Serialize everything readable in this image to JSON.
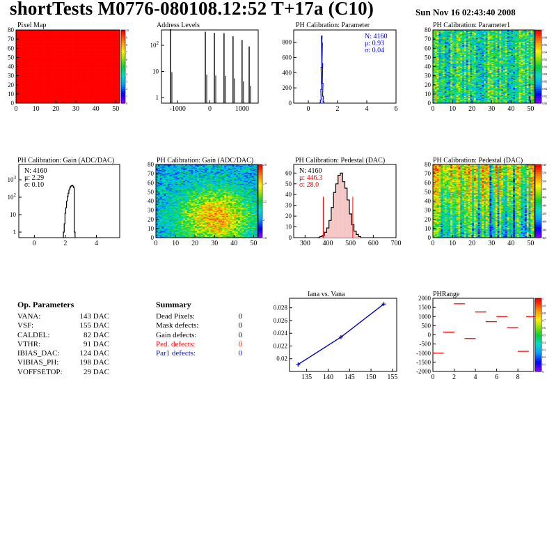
{
  "header": {
    "title": "shortTests M0776-080108.12:52 T+17a (C10)",
    "date": "Sun Nov 16 02:43:40 2008"
  },
  "op_parameters": {
    "title": "Op. Parameters",
    "rows": [
      {
        "name": "VANA:",
        "value": "143 DAC"
      },
      {
        "name": "VSF:",
        "value": "155 DAC"
      },
      {
        "name": "CALDEL:",
        "value": "82 DAC"
      },
      {
        "name": "VTHR:",
        "value": "91 DAC"
      },
      {
        "name": "IBIAS_DAC:",
        "value": "124 DAC"
      },
      {
        "name": "VIBIAS_PH:",
        "value": "198 DAC"
      },
      {
        "name": "VOFFSETOP:",
        "value": "29 DAC"
      }
    ]
  },
  "summary": {
    "title": "Summary",
    "rows": [
      {
        "name": "Dead Pixels:",
        "value": "0",
        "color": "#000000"
      },
      {
        "name": "Mask defects:",
        "value": "0",
        "color": "#000000"
      },
      {
        "name": "Gain defects:",
        "value": "0",
        "color": "#000000"
      },
      {
        "name": "Ped. defects:",
        "value": "0",
        "color": "#ff0000"
      },
      {
        "name": "Par1 defects:",
        "value": "0",
        "color": "#0000ff"
      }
    ]
  },
  "chart_data": [
    {
      "id": "pixel_map",
      "type": "heatmap",
      "title": "Pixel Map",
      "xlim": [
        0,
        52
      ],
      "ylim": [
        0,
        80
      ],
      "xticks": [
        "0",
        "10",
        "20",
        "30",
        "40",
        "50"
      ],
      "yticks": [
        "0",
        "10",
        "20",
        "30",
        "40",
        "50",
        "60",
        "70",
        "80"
      ],
      "fill": "uniform",
      "value": 10,
      "fill_color": "#ff0000",
      "zlim": [
        0,
        10
      ],
      "zticks": [
        "0",
        "1",
        "2",
        "3",
        "4",
        "5",
        "6",
        "7",
        "8",
        "9",
        "10"
      ]
    },
    {
      "id": "address_levels",
      "type": "bar",
      "title": "Address Levels",
      "log_y": true,
      "xlim": [
        -1500,
        1500
      ],
      "xticks": [
        "-1000",
        "0",
        "1000"
      ],
      "yticks": [
        "1",
        "10",
        "10^2"
      ],
      "peaks_x": [
        -1220,
        -140,
        140,
        440,
        720,
        1000,
        1220
      ],
      "peaks_height": [
        420,
        330,
        300,
        290,
        220,
        160,
        90
      ]
    },
    {
      "id": "ph_param",
      "type": "bar",
      "title": "PH Calibration: Parameter",
      "xlim": [
        -1,
        6
      ],
      "ylim": [
        0,
        960
      ],
      "xticks": [
        "0",
        "2",
        "4",
        "6"
      ],
      "yticks": [
        "0",
        "200",
        "400",
        "600",
        "800"
      ],
      "bins_x": [
        0.8,
        0.85,
        0.88,
        0.9,
        0.92,
        0.94,
        0.96,
        0.98,
        1.0,
        1.03,
        1.07
      ],
      "bins_y": [
        5,
        40,
        180,
        470,
        880,
        790,
        520,
        260,
        90,
        20,
        4
      ],
      "stats": {
        "n": "N: 4160",
        "mu": "μ: 0.93",
        "sigma": "σ: 0.04"
      },
      "stats_color": "#0000ff"
    },
    {
      "id": "ph_param1",
      "type": "heatmap",
      "title": "PH Calibration: Parameter1",
      "xlim": [
        0,
        52
      ],
      "ylim": [
        0,
        80
      ],
      "xticks": [
        "0",
        "10",
        "20",
        "30",
        "40",
        "50"
      ],
      "yticks": [
        "0",
        "10",
        "20",
        "30",
        "40",
        "50",
        "60",
        "70",
        "80"
      ],
      "fill": "noise",
      "mean": 0.5,
      "spread": 0.2,
      "zticks": [
        "0.80",
        "0.82",
        "0.84",
        "0.86",
        "0.88",
        "0.90",
        "0.92",
        "0.94",
        "0.96",
        "0.98",
        "1"
      ]
    },
    {
      "id": "ph_gain",
      "type": "bar",
      "title": "PH Calibration: Gain (ADC/DAC)",
      "log_y": true,
      "xlim": [
        -1,
        5.5
      ],
      "xticks": [
        "0",
        "2",
        "4"
      ],
      "yticks": [
        "1",
        "10",
        "10^2",
        "10^3"
      ],
      "bins_x": [
        1.9,
        1.95,
        2.0,
        2.05,
        2.1,
        2.15,
        2.2,
        2.25,
        2.3,
        2.35,
        2.4,
        2.45,
        2.5,
        2.55,
        2.6
      ],
      "bins_y": [
        1,
        3,
        12,
        25,
        60,
        110,
        170,
        260,
        340,
        420,
        460,
        480,
        430,
        350,
        1
      ],
      "stats": {
        "n": "N: 4160",
        "mu": "μ: 2.29",
        "sigma": "σ: 0.10"
      },
      "stats_color": "#000000"
    },
    {
      "id": "ph_gain_map",
      "type": "heatmap",
      "title": "PH Calibration: Gain (ADC/DAC)",
      "xlim": [
        0,
        52
      ],
      "ylim": [
        0,
        80
      ],
      "xticks": [
        "0",
        "10",
        "20",
        "30",
        "40",
        "50"
      ],
      "yticks": [
        "0",
        "10",
        "20",
        "30",
        "40",
        "50",
        "60",
        "70",
        "80"
      ],
      "fill": "gain",
      "mean": 0.55,
      "spread": 0.2,
      "zticks": [
        "1.8",
        "2",
        "2.2",
        "2.4",
        "2.6"
      ]
    },
    {
      "id": "ph_pedestal",
      "type": "bar",
      "title": "PH Calibration: Pedestal (DAC)",
      "xlim": [
        250,
        700
      ],
      "ylim": [
        0,
        68
      ],
      "xticks": [
        "300",
        "400",
        "500",
        "600",
        "700"
      ],
      "yticks": [
        "0",
        "10",
        "20",
        "30",
        "40",
        "50",
        "60"
      ],
      "bins_x": [
        360,
        370,
        380,
        390,
        400,
        410,
        420,
        430,
        440,
        450,
        460,
        470,
        480,
        490,
        500,
        510,
        520,
        530,
        540
      ],
      "bins_y": [
        0,
        1,
        2,
        5,
        9,
        16,
        28,
        42,
        50,
        58,
        60,
        52,
        46,
        35,
        22,
        12,
        6,
        3,
        1
      ],
      "marker_lines": [
        380,
        510
      ],
      "stats": {
        "n": "N: 4160",
        "mu": "μ: 446.3",
        "sigma": "σ: 28.0"
      },
      "stats_color": "#ff0000"
    },
    {
      "id": "ph_pedestal_map",
      "type": "heatmap",
      "title": "PH Calibration: Pedestal (DAC)",
      "xlim": [
        0,
        52
      ],
      "ylim": [
        0,
        80
      ],
      "xticks": [
        "0",
        "10",
        "20",
        "30",
        "40",
        "50"
      ],
      "yticks": [
        "0",
        "10",
        "20",
        "30",
        "40",
        "50",
        "60",
        "70",
        "80"
      ],
      "fill": "pedestal",
      "mean": 0.4,
      "spread": 0.2,
      "zticks": [
        "360",
        "380",
        "400",
        "420",
        "440",
        "460",
        "480",
        "500",
        "520",
        "540"
      ]
    },
    {
      "id": "iana_vana",
      "type": "line",
      "title": "Iana vs. Vana",
      "xlim": [
        131,
        156
      ],
      "ylim": [
        0.018,
        0.0295
      ],
      "xticks": [
        "135",
        "140",
        "145",
        "150",
        "155"
      ],
      "yticks": [
        "0.02",
        "0.022",
        "0.024",
        "0.026",
        "0.028"
      ],
      "x": [
        133,
        143,
        153
      ],
      "y": [
        0.0191,
        0.0234,
        0.0286
      ],
      "color": "#0000cc"
    },
    {
      "id": "phrange",
      "type": "scatter",
      "title": "PHRange",
      "xlim": [
        0,
        9.5
      ],
      "ylim": [
        -2000,
        2000
      ],
      "xticks": [
        "0",
        "2",
        "4",
        "6",
        "8"
      ],
      "yticks": [
        "-2000",
        "-1500",
        "-1000",
        "-500",
        "0",
        "500",
        "1000",
        "1500",
        "2000"
      ],
      "x": [
        0.5,
        1.5,
        2.5,
        3.5,
        4.5,
        5.5,
        6.5,
        7.5,
        8.5
      ],
      "y": [
        -1000,
        150,
        1700,
        -200,
        1250,
        720,
        1000,
        400,
        -900
      ],
      "extra_x": [
        9.3
      ],
      "extra_y": [
        1000
      ],
      "color": "#ff0000",
      "zticks": [
        "0",
        "0.1",
        "0.2",
        "0.3",
        "0.4",
        "0.5",
        "0.6",
        "0.7",
        "0.8",
        "0.9",
        "1"
      ]
    }
  ]
}
